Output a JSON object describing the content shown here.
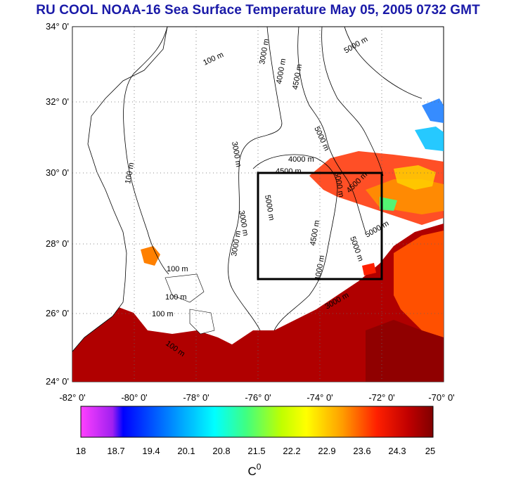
{
  "title": "RU COOL  NOAA-16 Sea Surface Temperature May 05, 2005 0732 GMT",
  "lat_labels": [
    "34° 0'",
    "32° 0'",
    "30° 0'",
    "28° 0'",
    "26° 0'",
    "24° 0'"
  ],
  "lon_labels": [
    "-82° 0'",
    "-80° 0'",
    "-78° 0'",
    "-76° 0'",
    "-74° 0'",
    "-72° 0'",
    "-70° 0'"
  ],
  "contour_labels": [
    "100 m",
    "100 m",
    "100 m",
    "100 m",
    "100 m",
    "100 m",
    "3000 m",
    "3000 m",
    "3000 m",
    "3000 m",
    "4000 m",
    "4000 m",
    "4500 m",
    "4500 m",
    "4500 m",
    "4500 m",
    "5000 m",
    "5000 m",
    "5000 m",
    "5000 m",
    "5000 m",
    "5000 m",
    "3000 m",
    "4000 m"
  ],
  "colorbar": {
    "ticks": [
      "18",
      "18.7",
      "19.4",
      "20.1",
      "20.8",
      "21.5",
      "22.2",
      "22.9",
      "23.6",
      "24.3",
      "25"
    ],
    "unit": "C",
    "unit_sup": "0"
  },
  "box_region": {
    "lon_min": -76,
    "lon_max": -72,
    "lat_min": 27,
    "lat_max": 30
  },
  "colors": {
    "title": "#1a1aa8",
    "box": "#000000",
    "land": "#ffffff"
  }
}
